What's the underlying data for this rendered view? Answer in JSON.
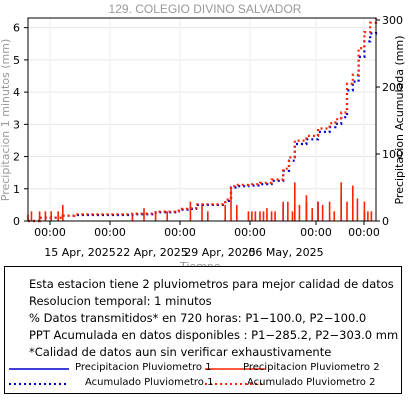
{
  "chart_data": {
    "type": "line",
    "title": "129. COLEGIO DIVINO SALVADOR",
    "xlabel": "Tiempo",
    "ylabel_left": "Precipitacion 1 minutos (mm)",
    "ylabel_right": "Precipitacion Acumulada (mm)",
    "x_range": [
      "2025-04-08",
      "2025-05-08"
    ],
    "x_time_labels": [
      "00:00",
      "00:00",
      "00:00",
      "00:00",
      "00:00",
      "00:00"
    ],
    "x_date_labels": [
      "15 Apr, 2025",
      "22 Apr, 2025",
      "29 Apr, 2025",
      "06 May, 2025"
    ],
    "y_left": {
      "ticks": [
        "0",
        "1",
        "2",
        "3",
        "4",
        "5",
        "6"
      ],
      "range": [
        0,
        6.3
      ]
    },
    "y_right": {
      "ticks": [
        "0",
        "100",
        "200",
        "300"
      ],
      "range": [
        0,
        303
      ]
    },
    "grid": true,
    "series": [
      {
        "name": "Precipitacion Pluviometro 1",
        "axis": "left",
        "style": "bars",
        "color": "#0000cc",
        "points": [
          [
            "2025-04-30",
            0.5
          ],
          [
            "2025-05-02",
            0.6
          ],
          [
            "2025-05-03",
            0.6
          ],
          [
            "2025-05-05",
            0.8
          ],
          [
            "2025-05-07",
            0.3
          ]
        ]
      },
      {
        "name": "Precipitacion Pluviometro 2",
        "axis": "left",
        "style": "bars",
        "color": "#ff2200",
        "points": [
          [
            "2025-04-08",
            0.2
          ],
          [
            "2025-04-08.3",
            0.3
          ],
          [
            "2025-04-09",
            0.3
          ],
          [
            "2025-04-09.5",
            0.3
          ],
          [
            "2025-04-10",
            0.3
          ],
          [
            "2025-04-10.6",
            0.3
          ],
          [
            "2025-04-11",
            0.5
          ],
          [
            "2025-04-17",
            0.2
          ],
          [
            "2025-04-18",
            0.4
          ],
          [
            "2025-04-19",
            0.3
          ],
          [
            "2025-04-20",
            0.3
          ],
          [
            "2025-04-22",
            0.6
          ],
          [
            "2025-04-23",
            0.5
          ],
          [
            "2025-04-23.5",
            0.3
          ],
          [
            "2025-04-25",
            0.5
          ],
          [
            "2025-04-25.5",
            1.0
          ],
          [
            "2025-04-26",
            0.5
          ],
          [
            "2025-04-27",
            0.3
          ],
          [
            "2025-04-27.3",
            0.3
          ],
          [
            "2025-04-27.6",
            0.3
          ],
          [
            "2025-04-28",
            0.3
          ],
          [
            "2025-04-28.3",
            0.3
          ],
          [
            "2025-04-28.6",
            0.4
          ],
          [
            "2025-04-29",
            0.3
          ],
          [
            "2025-04-29.3",
            0.3
          ],
          [
            "2025-04-30",
            0.6
          ],
          [
            "2025-04-30.4",
            0.6
          ],
          [
            "2025-04-30.8",
            0.3
          ],
          [
            "2025-05-01",
            1.2
          ],
          [
            "2025-05-01.4",
            0.5
          ],
          [
            "2025-05-02",
            0.8
          ],
          [
            "2025-05-02.5",
            0.4
          ],
          [
            "2025-05-03",
            0.6
          ],
          [
            "2025-05-03.4",
            0.5
          ],
          [
            "2025-05-04",
            0.6
          ],
          [
            "2025-05-04.4",
            0.3
          ],
          [
            "2025-05-05",
            1.2
          ],
          [
            "2025-05-05.5",
            0.6
          ],
          [
            "2025-05-06",
            1.1
          ],
          [
            "2025-05-06.4",
            0.7
          ],
          [
            "2025-05-07",
            0.6
          ],
          [
            "2025-05-07.3",
            0.3
          ],
          [
            "2025-05-07.6",
            0.3
          ]
        ]
      },
      {
        "name": "Acumulado Pluviometro 1",
        "axis": "right",
        "style": "dotted",
        "color": "#0000cc",
        "points": [
          [
            "2025-04-08",
            0
          ],
          [
            "2025-04-09",
            5
          ],
          [
            "2025-04-11",
            8
          ],
          [
            "2025-04-12",
            9
          ],
          [
            "2025-04-17",
            10
          ],
          [
            "2025-04-19",
            13
          ],
          [
            "2025-04-21",
            17
          ],
          [
            "2025-04-22",
            18
          ],
          [
            "2025-04-22.5",
            24
          ],
          [
            "2025-04-25",
            30
          ],
          [
            "2025-04-25.5",
            50
          ],
          [
            "2025-04-26",
            52
          ],
          [
            "2025-04-27",
            53
          ],
          [
            "2025-04-28",
            55
          ],
          [
            "2025-04-29",
            60
          ],
          [
            "2025-04-30",
            75
          ],
          [
            "2025-04-30.5",
            90
          ],
          [
            "2025-05-01",
            115
          ],
          [
            "2025-05-02",
            122
          ],
          [
            "2025-05-03",
            133
          ],
          [
            "2025-05-04",
            140
          ],
          [
            "2025-05-04.5",
            145
          ],
          [
            "2025-05-05",
            155
          ],
          [
            "2025-05-05.5",
            195
          ],
          [
            "2025-05-06",
            208
          ],
          [
            "2025-05-06.5",
            245
          ],
          [
            "2025-05-07",
            268
          ],
          [
            "2025-05-07.5",
            280
          ],
          [
            "2025-05-08",
            285.2
          ]
        ]
      },
      {
        "name": "Acumulado Pluviometro 2",
        "axis": "right",
        "style": "dotted",
        "color": "#ff2200",
        "points": [
          [
            "2025-04-08",
            0
          ],
          [
            "2025-04-09",
            5
          ],
          [
            "2025-04-11",
            8
          ],
          [
            "2025-04-12",
            10
          ],
          [
            "2025-04-17",
            11
          ],
          [
            "2025-04-19",
            14
          ],
          [
            "2025-04-21",
            18
          ],
          [
            "2025-04-22",
            19
          ],
          [
            "2025-04-22.5",
            25
          ],
          [
            "2025-04-25",
            32
          ],
          [
            "2025-04-25.5",
            52
          ],
          [
            "2025-04-26",
            54
          ],
          [
            "2025-04-27",
            55
          ],
          [
            "2025-04-28",
            57
          ],
          [
            "2025-04-29",
            62
          ],
          [
            "2025-04-30",
            78
          ],
          [
            "2025-04-30.5",
            95
          ],
          [
            "2025-05-01",
            120
          ],
          [
            "2025-05-02",
            127
          ],
          [
            "2025-05-03",
            138
          ],
          [
            "2025-05-04",
            146
          ],
          [
            "2025-05-04.5",
            152
          ],
          [
            "2025-05-05",
            162
          ],
          [
            "2025-05-05.5",
            205
          ],
          [
            "2025-05-06",
            218
          ],
          [
            "2025-05-06.5",
            258
          ],
          [
            "2025-05-07",
            282
          ],
          [
            "2025-05-07.5",
            296
          ],
          [
            "2025-05-08",
            303.0
          ]
        ]
      }
    ]
  },
  "info": {
    "lines": [
      "Esta estacion tiene 2 pluviometros para mejor calidad de datos",
      "Resolucion temporal: 1 minutos",
      "% Datos transmitidos* en 720 horas: P1−100.0, P2−100.0",
      "PPT Acumulada en datos disponibles : P1−285.2, P2−303.0 mm",
      "*Calidad de datos aun sin verificar exhaustivamente"
    ],
    "legend": [
      {
        "label": "Precipitacion Pluviometro 1",
        "color": "#0000cc",
        "style": "solid"
      },
      {
        "label": "Precipitacion Pluviometro 2",
        "color": "#ff2200",
        "style": "solid"
      },
      {
        "label": "Acumulado Pluviometro 1",
        "color": "#0000cc",
        "style": "dotted"
      },
      {
        "label": "Acumulado Pluviometro 2",
        "color": "#ff2200",
        "style": "dotted"
      }
    ]
  }
}
